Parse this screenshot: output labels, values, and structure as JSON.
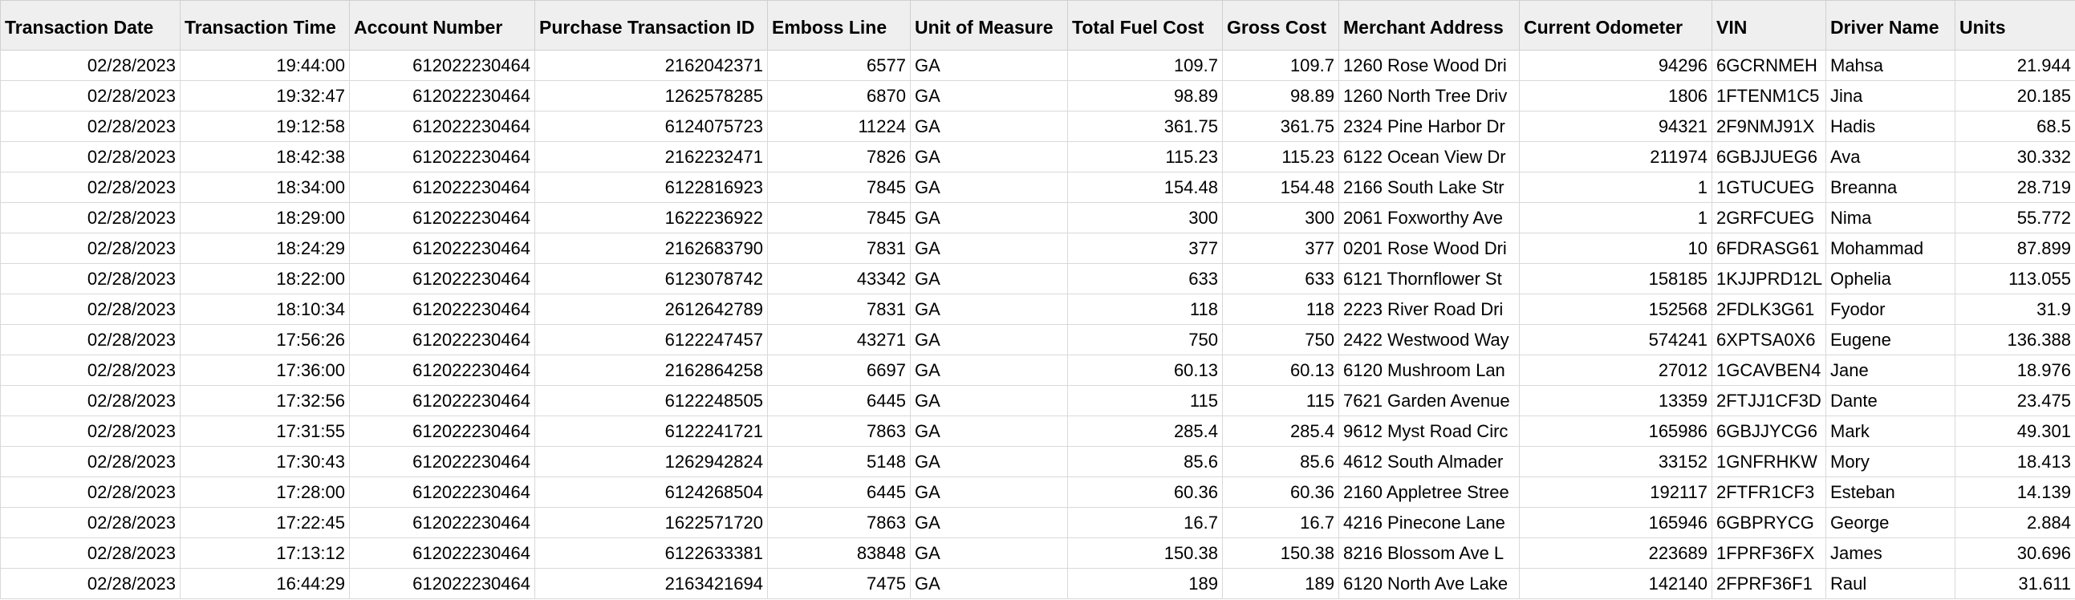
{
  "sheet": {
    "columns": [
      {
        "key": "date",
        "label": "Transaction Date",
        "align": "num"
      },
      {
        "key": "time",
        "label": "Transaction Time",
        "align": "num"
      },
      {
        "key": "account",
        "label": "Account Number",
        "align": "num"
      },
      {
        "key": "purchase_id",
        "label": "Purchase Transaction ID",
        "align": "num"
      },
      {
        "key": "emboss",
        "label": "Emboss Line",
        "align": "num"
      },
      {
        "key": "uom",
        "label": "Unit of Measure",
        "align": "txt"
      },
      {
        "key": "fuel_cost",
        "label": "Total Fuel Cost",
        "align": "num"
      },
      {
        "key": "gross_cost",
        "label": "Gross Cost",
        "align": "num"
      },
      {
        "key": "merchant",
        "label": "Merchant Address",
        "align": "txt"
      },
      {
        "key": "odometer",
        "label": "Current Odometer",
        "align": "num"
      },
      {
        "key": "vin",
        "label": "VIN",
        "align": "txt"
      },
      {
        "key": "driver",
        "label": "Driver Name",
        "align": "txt"
      },
      {
        "key": "units",
        "label": "Units",
        "align": "num"
      }
    ],
    "rows": [
      [
        "02/28/2023",
        "19:44:00",
        "612022230464",
        "2162042371",
        "6577",
        "GA",
        "109.7",
        "109.7",
        "1260 Rose Wood Dri",
        "94296",
        "6GCRNMEH",
        "Mahsa",
        "21.944"
      ],
      [
        "02/28/2023",
        "19:32:47",
        "612022230464",
        "1262578285",
        "6870",
        "GA",
        "98.89",
        "98.89",
        "1260 North Tree Driv",
        "1806",
        "1FTENM1C5",
        "Jina",
        "20.185"
      ],
      [
        "02/28/2023",
        "19:12:58",
        "612022230464",
        "6124075723",
        "11224",
        "GA",
        "361.75",
        "361.75",
        "2324 Pine Harbor Dr",
        "94321",
        "2F9NMJ91X",
        "Hadis",
        "68.5"
      ],
      [
        "02/28/2023",
        "18:42:38",
        "612022230464",
        "2162232471",
        "7826",
        "GA",
        "115.23",
        "115.23",
        "6122 Ocean View Dr",
        "211974",
        "6GBJJUEG6",
        "Ava",
        "30.332"
      ],
      [
        "02/28/2023",
        "18:34:00",
        "612022230464",
        "6122816923",
        "7845",
        "GA",
        "154.48",
        "154.48",
        "2166 South Lake Str",
        "1",
        "1GTUCUEG",
        "Breanna",
        "28.719"
      ],
      [
        "02/28/2023",
        "18:29:00",
        "612022230464",
        "1622236922",
        "7845",
        "GA",
        "300",
        "300",
        "2061 Foxworthy Ave",
        "1",
        "2GRFCUEG",
        "Nima",
        "55.772"
      ],
      [
        "02/28/2023",
        "18:24:29",
        "612022230464",
        "2162683790",
        "7831",
        "GA",
        "377",
        "377",
        "0201 Rose Wood Dri",
        "10",
        "6FDRASG61",
        "Mohammad",
        "87.899"
      ],
      [
        "02/28/2023",
        "18:22:00",
        "612022230464",
        "6123078742",
        "43342",
        "GA",
        "633",
        "633",
        "6121 Thornflower St",
        "158185",
        "1KJJPRD12L",
        "Ophelia",
        "113.055"
      ],
      [
        "02/28/2023",
        "18:10:34",
        "612022230464",
        "2612642789",
        "7831",
        "GA",
        "118",
        "118",
        "2223 River Road Dri",
        "152568",
        "2FDLK3G61",
        "Fyodor",
        "31.9"
      ],
      [
        "02/28/2023",
        "17:56:26",
        "612022230464",
        "6122247457",
        "43271",
        "GA",
        "750",
        "750",
        "2422 Westwood Way",
        "574241",
        "6XPTSA0X6",
        "Eugene",
        "136.388"
      ],
      [
        "02/28/2023",
        "17:36:00",
        "612022230464",
        "2162864258",
        "6697",
        "GA",
        "60.13",
        "60.13",
        "6120 Mushroom Lan",
        "27012",
        "1GCAVBEN4",
        "Jane",
        "18.976"
      ],
      [
        "02/28/2023",
        "17:32:56",
        "612022230464",
        "6122248505",
        "6445",
        "GA",
        "115",
        "115",
        "7621 Garden Avenue",
        "13359",
        "2FTJJ1CF3D",
        "Dante",
        "23.475"
      ],
      [
        "02/28/2023",
        "17:31:55",
        "612022230464",
        "6122241721",
        "7863",
        "GA",
        "285.4",
        "285.4",
        "9612 Myst Road Circ",
        "165986",
        "6GBJJYCG6",
        "Mark",
        "49.301"
      ],
      [
        "02/28/2023",
        "17:30:43",
        "612022230464",
        "1262942824",
        "5148",
        "GA",
        "85.6",
        "85.6",
        "4612 South Almader",
        "33152",
        "1GNFRHKW",
        "Mory",
        "18.413"
      ],
      [
        "02/28/2023",
        "17:28:00",
        "612022230464",
        "6124268504",
        "6445",
        "GA",
        "60.36",
        "60.36",
        "2160 Appletree Stree",
        "192117",
        "2FTFR1CF3",
        "Esteban",
        "14.139"
      ],
      [
        "02/28/2023",
        "17:22:45",
        "612022230464",
        "1622571720",
        "7863",
        "GA",
        "16.7",
        "16.7",
        "4216 Pinecone Lane",
        "165946",
        "6GBPRYCG",
        "George",
        "2.884"
      ],
      [
        "02/28/2023",
        "17:13:12",
        "612022230464",
        "6122633381",
        "83848",
        "GA",
        "150.38",
        "150.38",
        "8216 Blossom Ave L",
        "223689",
        "1FPRF36FX",
        "James",
        "30.696"
      ],
      [
        "02/28/2023",
        "16:44:29",
        "612022230464",
        "2163421694",
        "7475",
        "GA",
        "189",
        "189",
        "6120 North Ave Lake",
        "142140",
        "2FPRF36F1",
        "Raul",
        "31.611"
      ]
    ]
  }
}
